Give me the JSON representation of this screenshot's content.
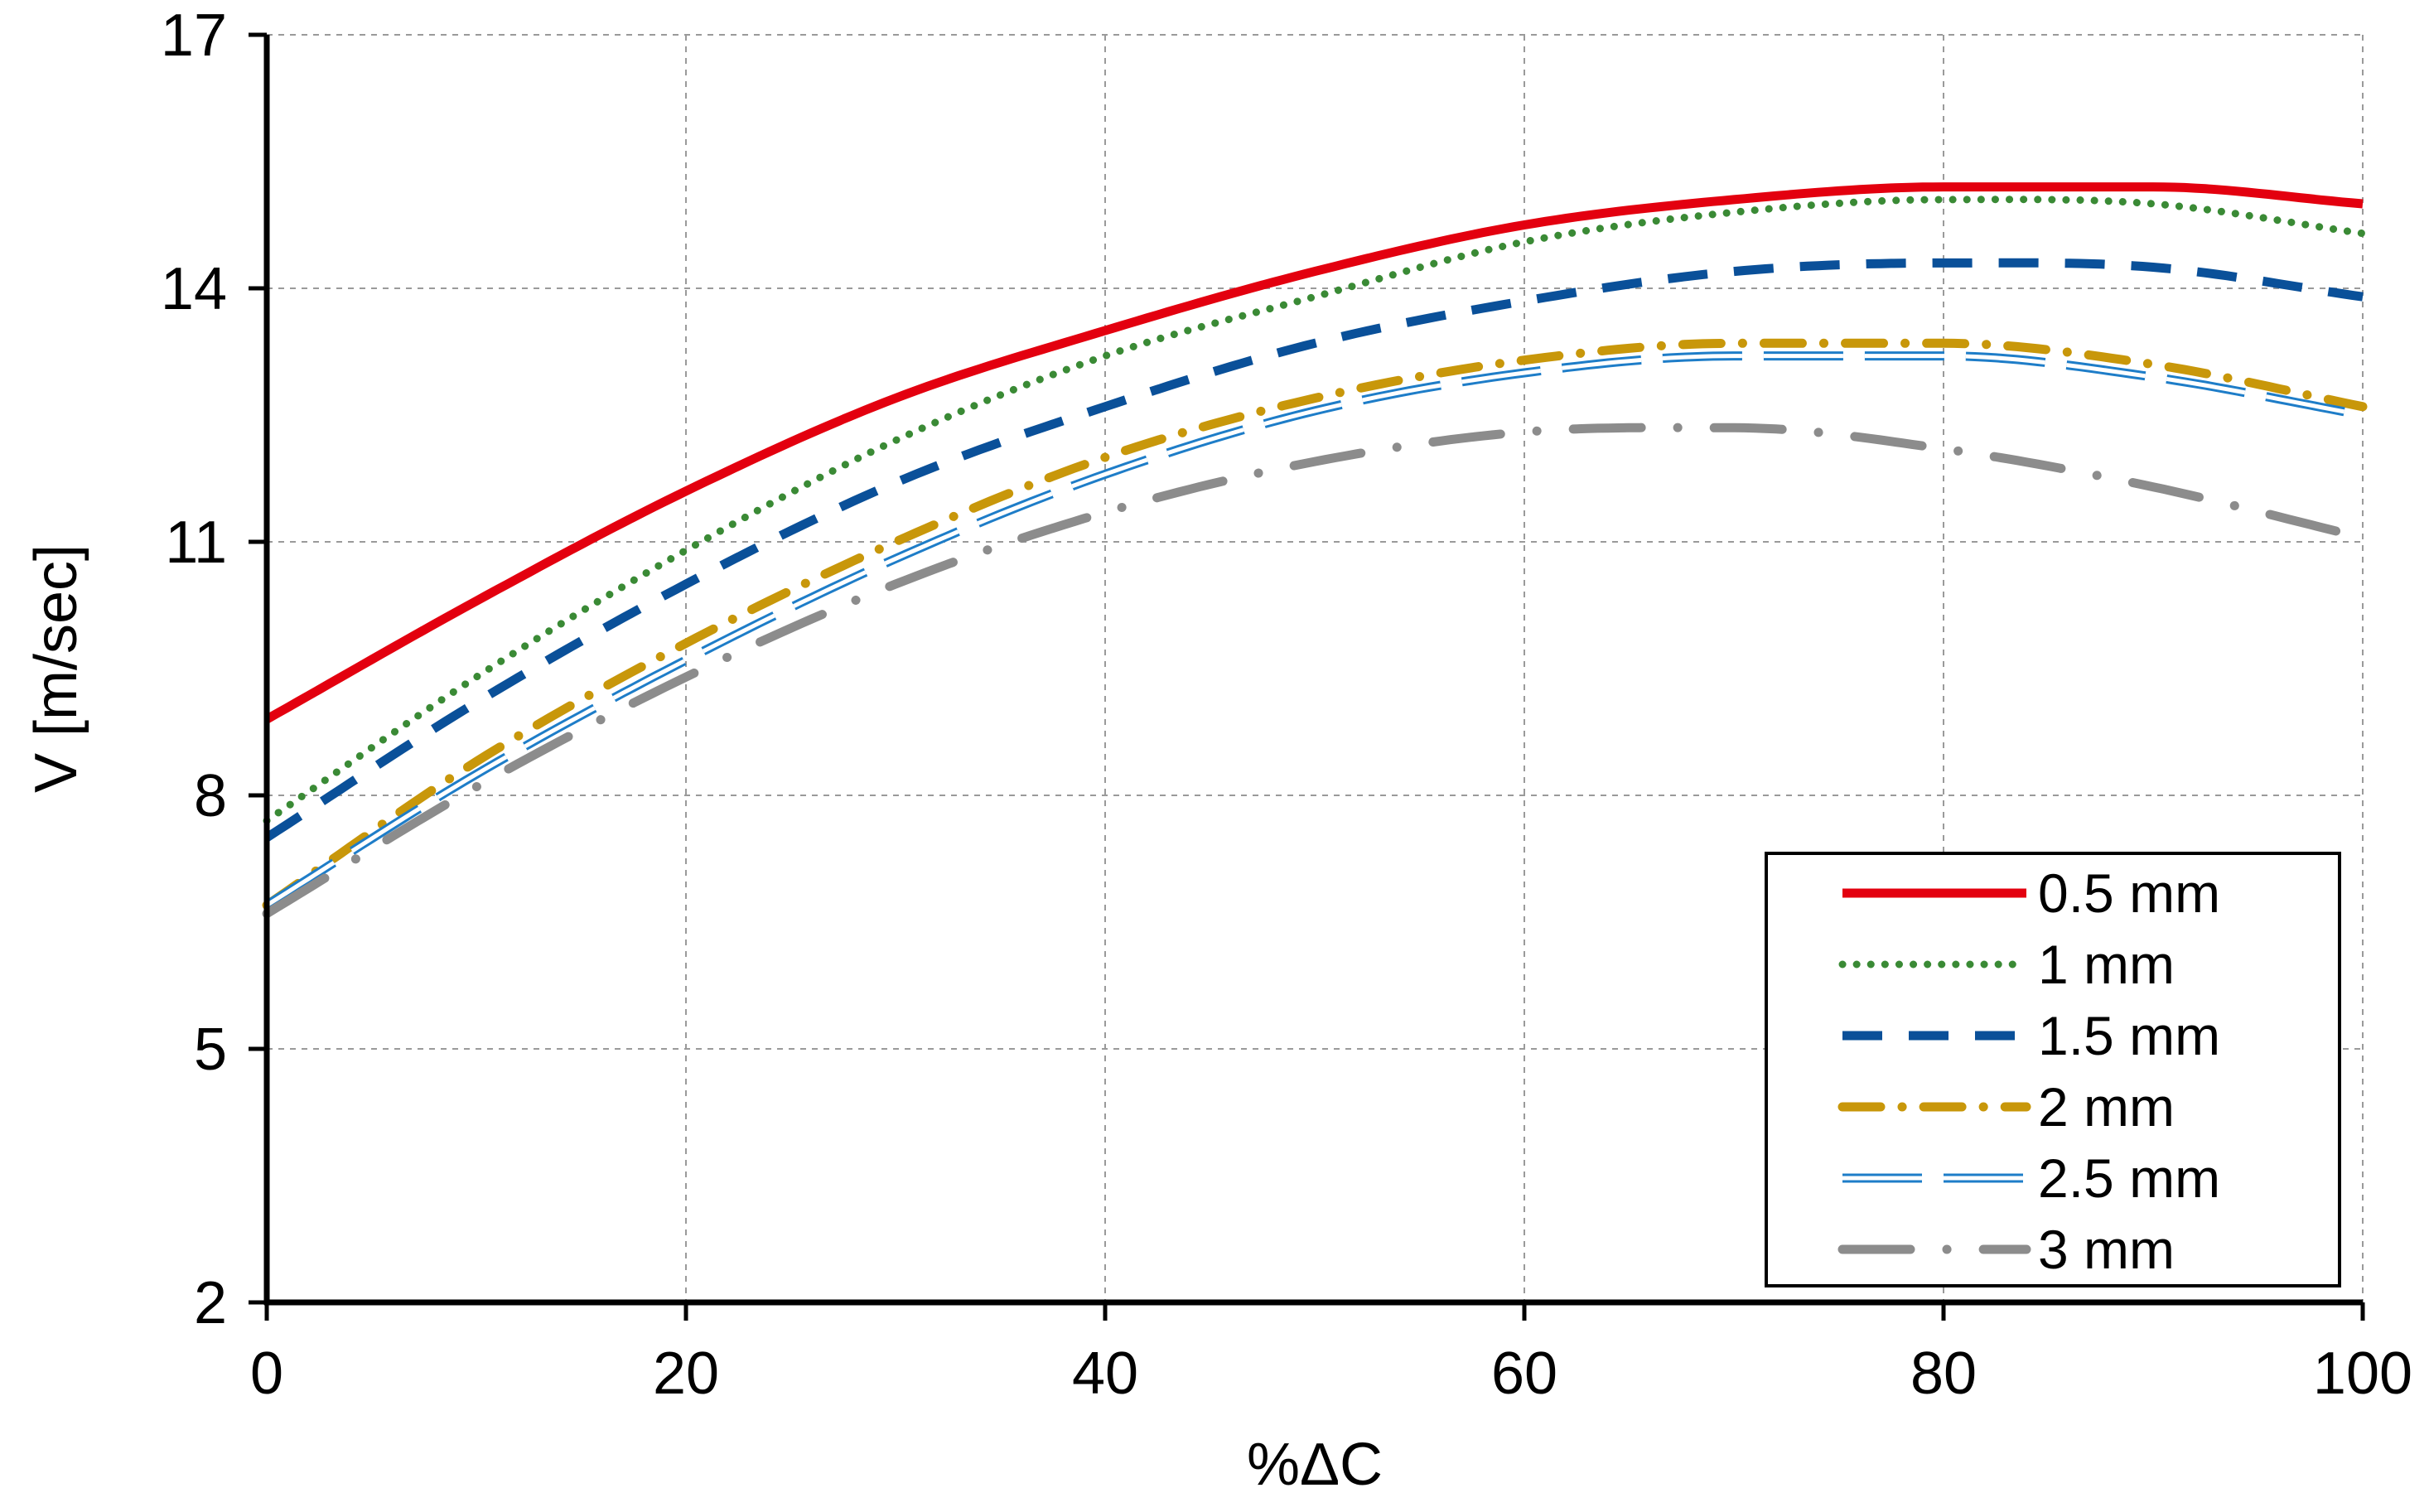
{
  "chart_data": {
    "type": "line",
    "title": "",
    "xlabel": "%ΔC",
    "ylabel": "V [m/sec]",
    "xlim": [
      0,
      100
    ],
    "ylim": [
      2,
      17
    ],
    "xticks": [
      0,
      20,
      40,
      60,
      80,
      100
    ],
    "xtick_labels": [
      "0",
      "20",
      "40",
      "60",
      "80",
      "100"
    ],
    "yticks": [
      2,
      5,
      8,
      11,
      14,
      17
    ],
    "ytick_labels": [
      "2",
      "5",
      "8",
      "11",
      "14",
      "17"
    ],
    "grid": true,
    "legend_position": "bottom-right",
    "x": [
      0,
      10,
      20,
      30,
      40,
      50,
      60,
      70,
      80,
      90,
      100
    ],
    "series": [
      {
        "name": "0.5 mm",
        "style": "solid",
        "color": "#E3000F",
        "values": [
          8.9,
          10.3,
          11.6,
          12.7,
          13.5,
          14.2,
          14.75,
          15.05,
          15.2,
          15.2,
          15.0
        ]
      },
      {
        "name": "1 mm",
        "style": "dotted",
        "color": "#3A8A35",
        "values": [
          7.7,
          9.4,
          10.9,
          12.2,
          13.2,
          13.9,
          14.55,
          14.9,
          15.05,
          15.0,
          14.65
        ]
      },
      {
        "name": "1.5 mm",
        "style": "dash",
        "color": "#0A5099",
        "values": [
          7.5,
          9.1,
          10.5,
          11.7,
          12.6,
          13.35,
          13.85,
          14.2,
          14.3,
          14.25,
          13.9
        ]
      },
      {
        "name": "2 mm",
        "style": "dashdot",
        "color": "#C8970A",
        "values": [
          6.7,
          8.4,
          9.8,
          11.0,
          12.0,
          12.7,
          13.15,
          13.35,
          13.35,
          13.1,
          12.6
        ]
      },
      {
        "name": "2.5 mm",
        "style": "hollow",
        "color": "#1E7DC8",
        "values": [
          6.7,
          8.25,
          9.6,
          10.8,
          11.8,
          12.55,
          13.0,
          13.2,
          13.2,
          12.95,
          12.5
        ]
      },
      {
        "name": "3 mm",
        "style": "longdashdot",
        "color": "#8C8C8C",
        "values": [
          6.6,
          8.1,
          9.4,
          10.5,
          11.35,
          11.95,
          12.3,
          12.35,
          12.1,
          11.65,
          11.05
        ]
      }
    ]
  }
}
